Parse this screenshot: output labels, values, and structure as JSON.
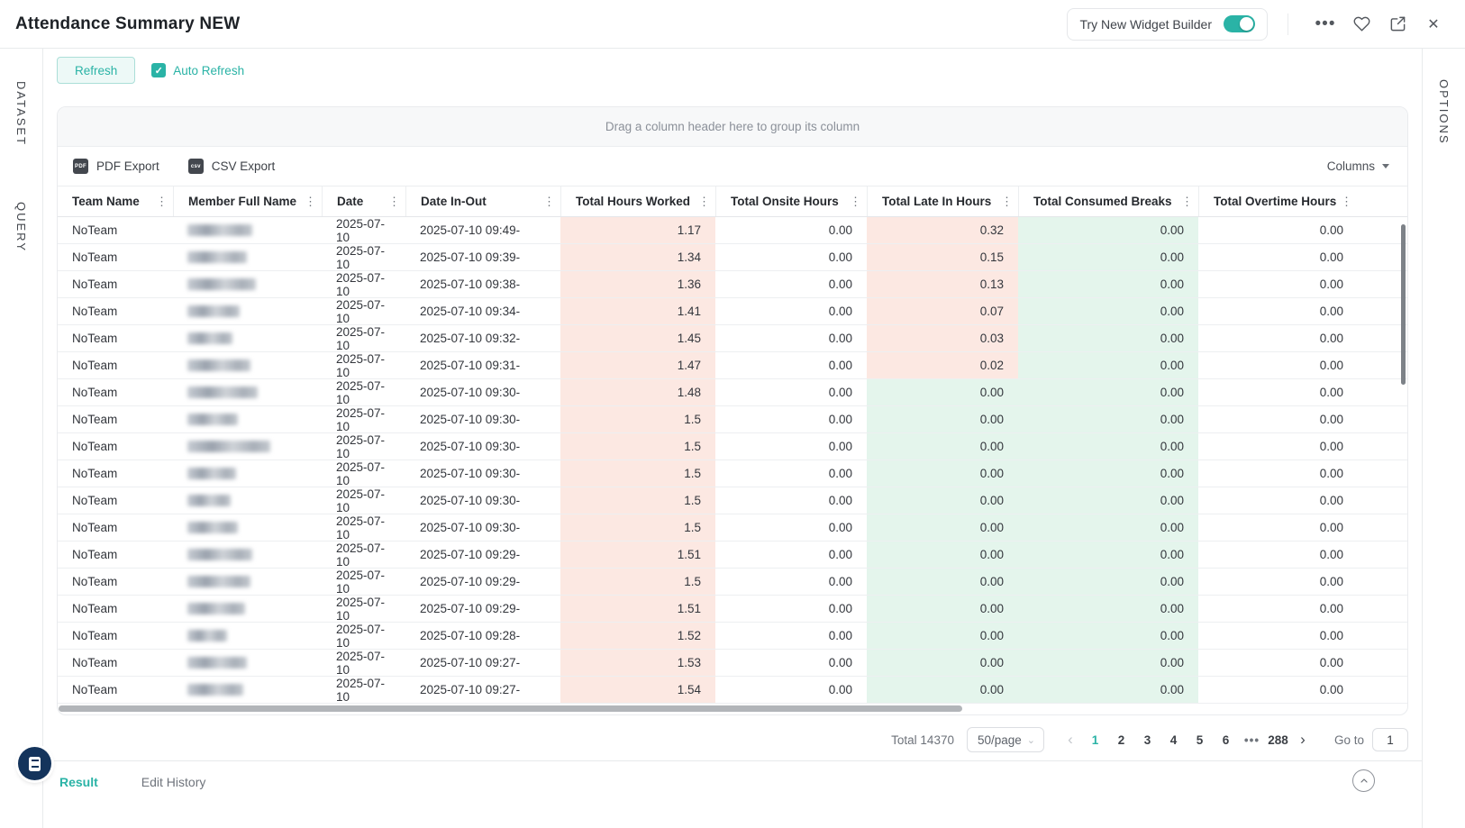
{
  "colors": {
    "accent": "#2ab3a6",
    "cell_pink": "#fce8e2",
    "cell_green": "#e4f5ec",
    "fab_navy": "#14345c"
  },
  "header": {
    "title": "Attendance Summary NEW",
    "widget_builder_label": "Try New Widget Builder",
    "widget_builder_toggle_on": true,
    "icons": [
      "more-ellipsis",
      "favorite-heart",
      "share",
      "close"
    ]
  },
  "rails": {
    "dataset_label": "DATASET",
    "query_label": "QUERY",
    "options_label": "OPTIONS"
  },
  "toolbar": {
    "refresh_label": "Refresh",
    "auto_refresh_label": "Auto Refresh",
    "auto_refresh_checked": true,
    "check_glyph": "✓"
  },
  "grid": {
    "group_hint": "Drag a column header here to group its column",
    "pdf_export_label": "PDF Export",
    "pdf_icon_text": "PDF",
    "csv_export_label": "CSV Export",
    "csv_icon_text": "csv",
    "columns_dropdown_label": "Columns",
    "columns": [
      "Team Name",
      "Member Full Name",
      "Date",
      "Date In-Out",
      "Total Hours Worked",
      "Total Onsite Hours",
      "Total Late In Hours",
      "Total Consumed Breaks",
      "Total Overtime Hours"
    ],
    "rows": [
      {
        "team": "NoTeam",
        "date": "2025-07-10",
        "in_out": "2025-07-10 09:49-",
        "worked": "1.17",
        "onsite": "0.00",
        "late": "0.32",
        "breaks": "0.00",
        "overtime": "0.00",
        "name_w": 72
      },
      {
        "team": "NoTeam",
        "date": "2025-07-10",
        "in_out": "2025-07-10 09:39-",
        "worked": "1.34",
        "onsite": "0.00",
        "late": "0.15",
        "breaks": "0.00",
        "overtime": "0.00",
        "name_w": 66
      },
      {
        "team": "NoTeam",
        "date": "2025-07-10",
        "in_out": "2025-07-10 09:38-",
        "worked": "1.36",
        "onsite": "0.00",
        "late": "0.13",
        "breaks": "0.00",
        "overtime": "0.00",
        "name_w": 76
      },
      {
        "team": "NoTeam",
        "date": "2025-07-10",
        "in_out": "2025-07-10 09:34-",
        "worked": "1.41",
        "onsite": "0.00",
        "late": "0.07",
        "breaks": "0.00",
        "overtime": "0.00",
        "name_w": 58
      },
      {
        "team": "NoTeam",
        "date": "2025-07-10",
        "in_out": "2025-07-10 09:32-",
        "worked": "1.45",
        "onsite": "0.00",
        "late": "0.03",
        "breaks": "0.00",
        "overtime": "0.00",
        "name_w": 50
      },
      {
        "team": "NoTeam",
        "date": "2025-07-10",
        "in_out": "2025-07-10 09:31-",
        "worked": "1.47",
        "onsite": "0.00",
        "late": "0.02",
        "breaks": "0.00",
        "overtime": "0.00",
        "name_w": 70
      },
      {
        "team": "NoTeam",
        "date": "2025-07-10",
        "in_out": "2025-07-10 09:30-",
        "worked": "1.48",
        "onsite": "0.00",
        "late": "0.00",
        "breaks": "0.00",
        "overtime": "0.00",
        "name_w": 78
      },
      {
        "team": "NoTeam",
        "date": "2025-07-10",
        "in_out": "2025-07-10 09:30-",
        "worked": "1.5",
        "onsite": "0.00",
        "late": "0.00",
        "breaks": "0.00",
        "overtime": "0.00",
        "name_w": 56
      },
      {
        "team": "NoTeam",
        "date": "2025-07-10",
        "in_out": "2025-07-10 09:30-",
        "worked": "1.5",
        "onsite": "0.00",
        "late": "0.00",
        "breaks": "0.00",
        "overtime": "0.00",
        "name_w": 92
      },
      {
        "team": "NoTeam",
        "date": "2025-07-10",
        "in_out": "2025-07-10 09:30-",
        "worked": "1.5",
        "onsite": "0.00",
        "late": "0.00",
        "breaks": "0.00",
        "overtime": "0.00",
        "name_w": 54
      },
      {
        "team": "NoTeam",
        "date": "2025-07-10",
        "in_out": "2025-07-10 09:30-",
        "worked": "1.5",
        "onsite": "0.00",
        "late": "0.00",
        "breaks": "0.00",
        "overtime": "0.00",
        "name_w": 48
      },
      {
        "team": "NoTeam",
        "date": "2025-07-10",
        "in_out": "2025-07-10 09:30-",
        "worked": "1.5",
        "onsite": "0.00",
        "late": "0.00",
        "breaks": "0.00",
        "overtime": "0.00",
        "name_w": 56
      },
      {
        "team": "NoTeam",
        "date": "2025-07-10",
        "in_out": "2025-07-10 09:29-",
        "worked": "1.51",
        "onsite": "0.00",
        "late": "0.00",
        "breaks": "0.00",
        "overtime": "0.00",
        "name_w": 72
      },
      {
        "team": "NoTeam",
        "date": "2025-07-10",
        "in_out": "2025-07-10 09:29-",
        "worked": "1.5",
        "onsite": "0.00",
        "late": "0.00",
        "breaks": "0.00",
        "overtime": "0.00",
        "name_w": 70
      },
      {
        "team": "NoTeam",
        "date": "2025-07-10",
        "in_out": "2025-07-10 09:29-",
        "worked": "1.51",
        "onsite": "0.00",
        "late": "0.00",
        "breaks": "0.00",
        "overtime": "0.00",
        "name_w": 64
      },
      {
        "team": "NoTeam",
        "date": "2025-07-10",
        "in_out": "2025-07-10 09:28-",
        "worked": "1.52",
        "onsite": "0.00",
        "late": "0.00",
        "breaks": "0.00",
        "overtime": "0.00",
        "name_w": 44
      },
      {
        "team": "NoTeam",
        "date": "2025-07-10",
        "in_out": "2025-07-10 09:27-",
        "worked": "1.53",
        "onsite": "0.00",
        "late": "0.00",
        "breaks": "0.00",
        "overtime": "0.00",
        "name_w": 66
      },
      {
        "team": "NoTeam",
        "date": "2025-07-10",
        "in_out": "2025-07-10 09:27-",
        "worked": "1.54",
        "onsite": "0.00",
        "late": "0.00",
        "breaks": "0.00",
        "overtime": "0.00",
        "name_w": 62
      }
    ]
  },
  "pagination": {
    "total_label": "Total 14370",
    "page_size_value": "50/page",
    "prev_glyph": "‹",
    "next_glyph": "›",
    "pages": [
      "1",
      "2",
      "3",
      "4",
      "5",
      "6",
      "•••",
      "288"
    ],
    "active_page": "1",
    "go_to_label": "Go to",
    "go_to_value": "1"
  },
  "footer": {
    "tabs": [
      "Result",
      "Edit History"
    ],
    "active_tab": "Result"
  }
}
